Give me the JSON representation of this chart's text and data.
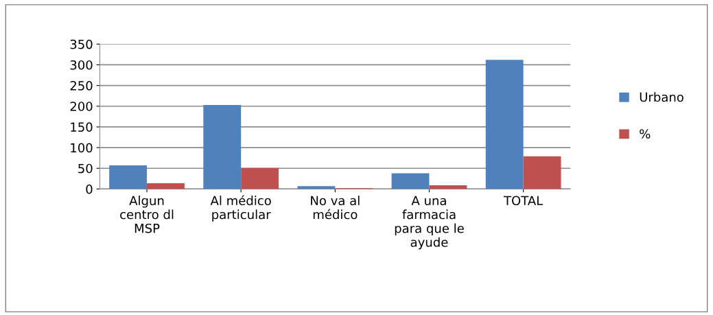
{
  "chart_data": {
    "type": "bar",
    "categories": [
      "Algun centro dl MSP",
      "Al médico particular",
      "No va al médico",
      "A una farmacia para que le ayude",
      "TOTAL"
    ],
    "series": [
      {
        "name": "Urbano",
        "color": "#4f81bd",
        "values": [
          57,
          203,
          7,
          38,
          312
        ]
      },
      {
        "name": "%",
        "color": "#c0504d",
        "values": [
          14,
          51,
          2,
          9,
          79
        ]
      }
    ],
    "ylim": [
      0,
      350
    ],
    "yticks": [
      0,
      50,
      100,
      150,
      200,
      250,
      300,
      350
    ],
    "grid": "y",
    "legend": "right"
  }
}
